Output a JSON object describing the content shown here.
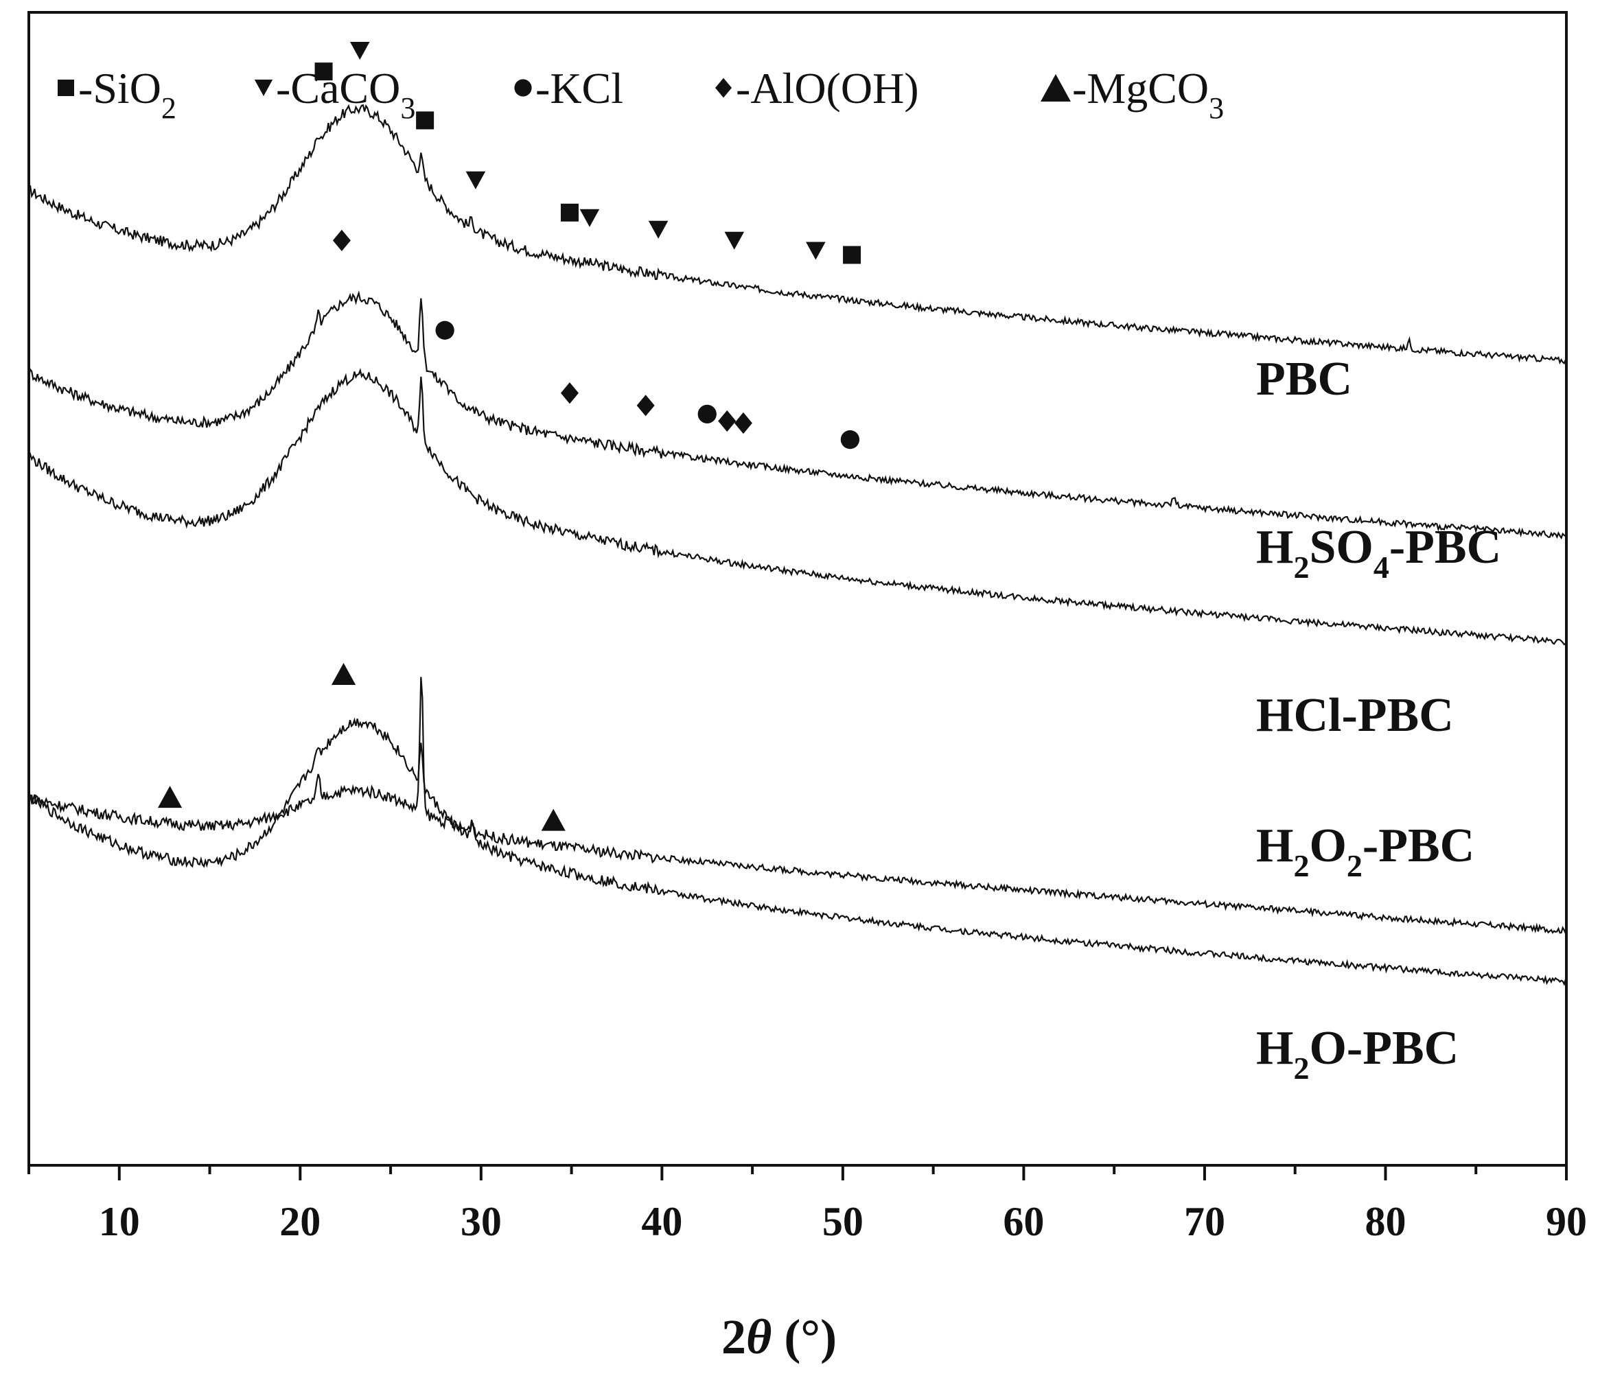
{
  "chart_data": {
    "type": "line",
    "title": "",
    "xlabel": {
      "prefix": "2",
      "theta": "θ",
      "suffix": " (°)"
    },
    "ylabel": "",
    "xlim": [
      5,
      90
    ],
    "xticks": [
      "10",
      "20",
      "30",
      "40",
      "50",
      "60",
      "70",
      "80",
      "90"
    ],
    "legend": [
      {
        "marker": "square",
        "label": "-SiO",
        "sub": "2"
      },
      {
        "marker": "triangle-down",
        "label": "-CaCO",
        "sub": "3"
      },
      {
        "marker": "circle",
        "label": "-KCl",
        "sub": ""
      },
      {
        "marker": "diamond",
        "label": "-AlO(OH)",
        "sub": ""
      },
      {
        "marker": "triangle-up",
        "label": "-MgCO",
        "sub": "3"
      }
    ],
    "series": [
      {
        "name": "PBC",
        "label_parts": [
          {
            "t": "PBC",
            "sub": false
          }
        ],
        "baseline": 0.1,
        "hump": 0.17,
        "hump_center": 23,
        "hump_width": 4.2,
        "tail": 0.16,
        "peaks": [
          {
            "x": 21.0,
            "h": 0.012
          },
          {
            "x": 26.7,
            "h": 0.028
          },
          {
            "x": 29.5,
            "h": 0.016
          },
          {
            "x": 81.3,
            "h": 0.012
          }
        ],
        "phases": [
          {
            "marker": "square",
            "x": 21.3,
            "y_offset": 0.05
          },
          {
            "marker": "triangle-down",
            "x": 23.3,
            "y_offset": 0.045
          },
          {
            "marker": "square",
            "x": 26.9,
            "y_offset": 0.045
          },
          {
            "marker": "triangle-down",
            "x": 29.7,
            "y_offset": 0.035
          },
          {
            "marker": "square",
            "x": 34.9,
            "y_offset": 0.032
          },
          {
            "marker": "triangle-down",
            "x": 36.0,
            "y_offset": 0.03
          },
          {
            "marker": "triangle-down",
            "x": 39.8,
            "y_offset": 0.03
          },
          {
            "marker": "triangle-down",
            "x": 44.0,
            "y_offset": 0.03
          },
          {
            "marker": "triangle-down",
            "x": 48.5,
            "y_offset": 0.03
          },
          {
            "marker": "square",
            "x": 50.5,
            "y_offset": 0.03
          }
        ]
      },
      {
        "name": "H2SO4-PBC",
        "label_parts": [
          {
            "t": "H",
            "sub": false
          },
          {
            "t": "2",
            "sub": true
          },
          {
            "t": "SO",
            "sub": false
          },
          {
            "t": "4",
            "sub": true
          },
          {
            "t": "-PBC",
            "sub": false
          }
        ],
        "baseline": 0.1,
        "hump": 0.16,
        "hump_center": 23,
        "hump_width": 4.2,
        "tail": 0.14,
        "peaks": [
          {
            "x": 21.0,
            "h": 0.02
          },
          {
            "x": 26.7,
            "h": 0.1
          },
          {
            "x": 28.0,
            "h": 0.012
          },
          {
            "x": 68.3,
            "h": 0.015
          }
        ],
        "phases": [
          {
            "marker": "diamond",
            "x": 22.3,
            "y_offset": 0.05
          },
          {
            "marker": "circle",
            "x": 28.0,
            "y_offset": 0.035
          },
          {
            "marker": "diamond",
            "x": 34.9,
            "y_offset": 0.03
          },
          {
            "marker": "diamond",
            "x": 39.1,
            "y_offset": 0.03
          },
          {
            "marker": "circle",
            "x": 42.5,
            "y_offset": 0.03
          },
          {
            "marker": "diamond",
            "x": 43.6,
            "y_offset": 0.025
          },
          {
            "marker": "diamond",
            "x": 44.5,
            "y_offset": 0.025
          },
          {
            "marker": "circle",
            "x": 50.4,
            "y_offset": 0.02
          }
        ]
      },
      {
        "name": "HCl-PBC",
        "label_parts": [
          {
            "t": "HCl-PBC",
            "sub": false
          }
        ],
        "baseline": 0.1,
        "hump": 0.17,
        "hump_center": 23,
        "hump_width": 4.5,
        "tail": 0.2,
        "peaks": [
          {
            "x": 26.7,
            "h": 0.09
          }
        ],
        "phases": []
      },
      {
        "name": "H2O2-PBC",
        "label_parts": [
          {
            "t": "H",
            "sub": false
          },
          {
            "t": "2",
            "sub": true
          },
          {
            "t": "O",
            "sub": false
          },
          {
            "t": "2",
            "sub": true
          },
          {
            "t": "-PBC",
            "sub": false
          }
        ],
        "baseline": 0.1,
        "hump": 0.05,
        "hump_center": 23,
        "hump_width": 4.5,
        "tail": 0.06,
        "peaks": [
          {
            "x": 21.0,
            "h": 0.035
          },
          {
            "x": 26.7,
            "h": 0.22
          },
          {
            "x": 29.5,
            "h": 0.018
          },
          {
            "x": 50.3,
            "h": 0.008
          }
        ],
        "phases": []
      },
      {
        "name": "H2O-PBC",
        "label_parts": [
          {
            "t": "H",
            "sub": false
          },
          {
            "t": "2",
            "sub": true
          },
          {
            "t": "O-PBC",
            "sub": false
          }
        ],
        "baseline": 0.1,
        "hump": 0.16,
        "hump_center": 23,
        "hump_width": 4.2,
        "tail": 0.2,
        "peaks": [
          {
            "x": 21.0,
            "h": 0.012
          },
          {
            "x": 26.7,
            "h": 0.06
          },
          {
            "x": 29.5,
            "h": 0.022
          }
        ],
        "phases": [
          {
            "marker": "triangle-up",
            "x": 12.8,
            "y_offset": 0.05
          },
          {
            "marker": "triangle-up",
            "x": 22.4,
            "y_offset": 0.04
          },
          {
            "marker": "triangle-up",
            "x": 34.0,
            "y_offset": 0.035
          }
        ]
      }
    ]
  }
}
